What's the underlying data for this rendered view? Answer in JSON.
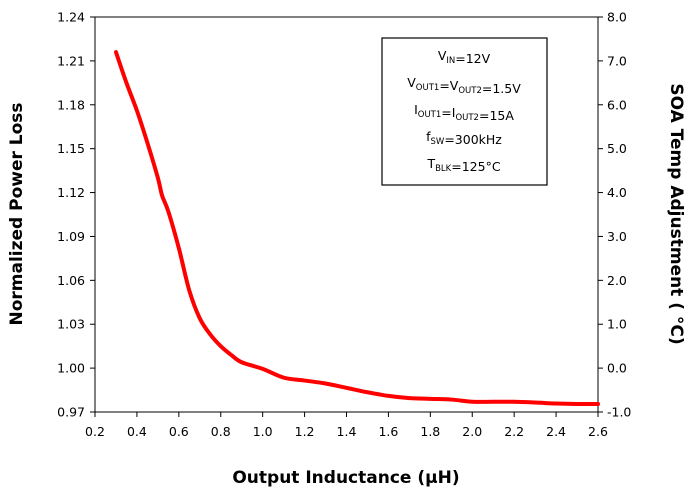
{
  "chart_data": {
    "type": "line",
    "xlabel": "Output Inductance (μH)",
    "ylabel_left": "Normalized Power Loss",
    "ylabel_right": "SOA Temp Adjustment ( °C)",
    "xlim": [
      0.2,
      2.6
    ],
    "ylim_left": [
      0.97,
      1.24
    ],
    "ylim_right": [
      -1.0,
      8.0
    ],
    "x_ticks": [
      "0.2",
      "0.4",
      "0.6",
      "0.8",
      "1.0",
      "1.2",
      "1.4",
      "1.6",
      "1.8",
      "2.0",
      "2.2",
      "2.4",
      "2.6"
    ],
    "y_ticks_left": [
      "0.97",
      "1.00",
      "1.03",
      "1.06",
      "1.09",
      "1.12",
      "1.15",
      "1.18",
      "1.21",
      "1.24"
    ],
    "y_ticks_right": [
      "-1.0",
      "0.0",
      "1.0",
      "2.0",
      "3.0",
      "4.0",
      "5.0",
      "6.0",
      "7.0",
      "8.0"
    ],
    "grid": false,
    "line_color": "#ff0000",
    "series": [
      {
        "x": [
          0.3,
          0.35,
          0.4,
          0.45,
          0.5,
          0.52,
          0.55,
          0.6,
          0.65,
          0.7,
          0.75,
          0.8,
          0.85,
          0.9,
          1.0,
          1.1,
          1.2,
          1.3,
          1.4,
          1.5,
          1.6,
          1.7,
          1.8,
          1.9,
          2.0,
          2.1,
          2.2,
          2.3,
          2.4,
          2.5,
          2.6
        ],
        "values": [
          1.216,
          1.195,
          1.176,
          1.154,
          1.13,
          1.118,
          1.107,
          1.082,
          1.053,
          1.034,
          1.023,
          1.015,
          1.009,
          1.004,
          0.9995,
          0.9935,
          0.9915,
          0.9895,
          0.9865,
          0.9835,
          0.981,
          0.9795,
          0.979,
          0.9785,
          0.977,
          0.977,
          0.977,
          0.9765,
          0.9758,
          0.9755,
          0.9755
        ]
      }
    ],
    "legend": {
      "placement": "top-right",
      "lines": [
        {
          "main": "V",
          "sub": "IN",
          "rest": "=12V"
        },
        {
          "main": "V",
          "sub": "OUT1",
          "rest": "=V",
          "sub2": "OUT2",
          "rest2": "=1.5V"
        },
        {
          "main": "I",
          "sub": "OUT1",
          "rest": "=I",
          "sub2": "OUT2",
          "rest2": "=15A"
        },
        {
          "main": "f",
          "sub": "SW",
          "rest": "=300kHz"
        },
        {
          "main": "T",
          "sub": "BLK",
          "rest": "=125°C"
        }
      ]
    }
  }
}
